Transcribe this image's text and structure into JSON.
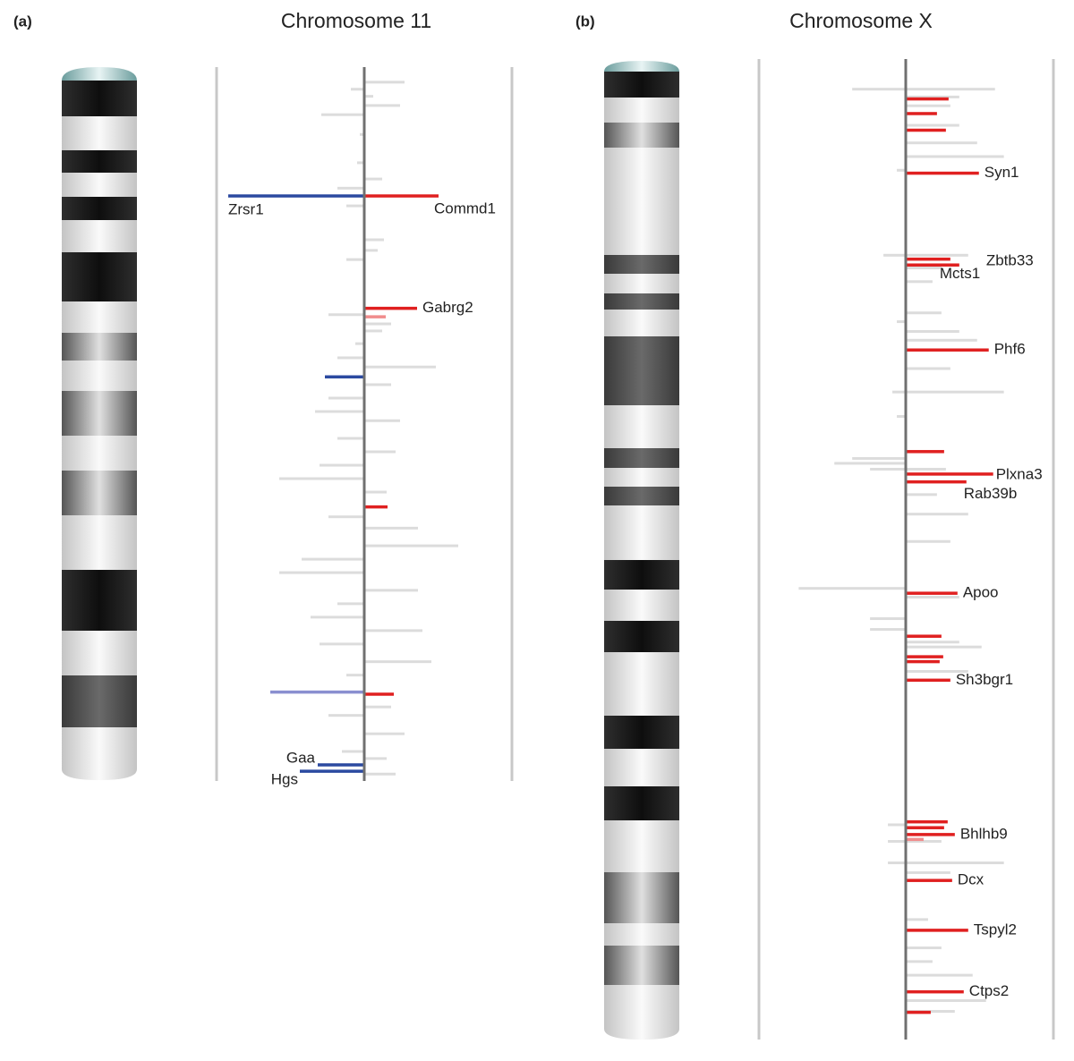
{
  "chart_data": [
    {
      "type": "bar",
      "panel_label": "(a)",
      "title": "Chromosome 11",
      "xlim": [
        0,
        100
      ],
      "ylim": [
        -165,
        165
      ],
      "series": [
        {
          "color": "#dcdcdc",
          "x": [
            1.5,
            2.5,
            3.5,
            4.8,
            6.1,
            8.9,
            12.9,
            15.2,
            16.5,
            19.0,
            23.8,
            25.3,
            26.6,
            34.4,
            35.7,
            36.7,
            38.5,
            40.5,
            41.8,
            44.3,
            46.2,
            48.1,
            49.4,
            51.9,
            53.8,
            55.7,
            57.6,
            59.5,
            63.0,
            64.6,
            67.1,
            69.0,
            70.9,
            73.4,
            75.3,
            77.2,
            79.1,
            81.0,
            83.5,
            85.4,
            89.9,
            91.1,
            93.7,
            96.2,
            97.2,
            99.4
          ],
          "values": [
            45,
            -15,
            10,
            40,
            -48,
            -5,
            -8,
            20,
            -30,
            -20,
            22,
            15,
            -20,
            -40,
            30,
            20,
            -10,
            -30,
            80,
            30,
            -40,
            -55,
            40,
            -30,
            35,
            -50,
            -95,
            25,
            -40,
            60,
            105,
            -70,
            -95,
            60,
            -30,
            -60,
            65,
            -50,
            75,
            -20,
            30,
            -40,
            45,
            -25,
            25,
            35
          ]
        },
        {
          "color": "#e02020",
          "x": [
            17.6,
            33.5,
            61.6,
            88.1
          ],
          "values": [
            83,
            59,
            26,
            33
          ],
          "labels": [
            "Commd1",
            "Gabrg2",
            null,
            null
          ]
        },
        {
          "color": "#f08c8c",
          "x": [
            34.7
          ],
          "values": [
            24
          ]
        },
        {
          "color": "#2b4aa0",
          "x": [
            17.6,
            43.2,
            98.1,
            99.0
          ],
          "values": [
            -152,
            -44,
            -52,
            -72
          ],
          "labels": [
            "Zrsr1",
            null,
            "Gaa",
            "Hgs"
          ]
        },
        {
          "color": "#8a8fd0",
          "x": [
            87.8
          ],
          "values": [
            -105
          ]
        }
      ]
    },
    {
      "type": "bar",
      "panel_label": "(b)",
      "title": "Chromosome X",
      "xlim": [
        0,
        100
      ],
      "ylim": [
        -165,
        165
      ],
      "series": [
        {
          "color": "#dcdcdc",
          "x": [
            2.9,
            2.9,
            3.7,
            4.6,
            6.6,
            8.4,
            9.8,
            11.2,
            19.9,
            19.9,
            21.2,
            22.6,
            25.8,
            26.7,
            27.7,
            28.6,
            31.5,
            33.9,
            33.9,
            36.4,
            40.7,
            41.2,
            41.8,
            41.8,
            44.4,
            46.4,
            49.2,
            54.0,
            54.9,
            57.1,
            58.2,
            59.5,
            60.0,
            62.5,
            78.2,
            79.9,
            79.9,
            82.1,
            82.1,
            83.1,
            87.9,
            90.8,
            92.2,
            93.6,
            96.2,
            97.3
          ],
          "values": [
            -60,
            100,
            60,
            50,
            60,
            80,
            110,
            -10,
            -25,
            70,
            40,
            30,
            40,
            -10,
            60,
            80,
            50,
            -15,
            110,
            -10,
            -60,
            -80,
            -40,
            45,
            35,
            70,
            50,
            -120,
            60,
            -40,
            -40,
            60,
            85,
            70,
            -20,
            -20,
            40,
            -20,
            110,
            50,
            25,
            40,
            30,
            75,
            90,
            55
          ]
        },
        {
          "color": "#e02020",
          "x": [
            3.9,
            5.4,
            7.1,
            11.5,
            20.3,
            20.9,
            29.6,
            40.0,
            42.3,
            43.1,
            54.5,
            58.9,
            61.0,
            61.5,
            63.4,
            77.9,
            78.5,
            79.2,
            83.9,
            89.0,
            95.3,
            97.4
          ],
          "values": [
            48,
            35,
            45,
            82,
            50,
            60,
            93,
            43,
            98,
            68,
            58,
            40,
            42,
            38,
            50,
            47,
            43,
            55,
            52,
            70,
            65,
            28
          ],
          "labels": [
            null,
            null,
            null,
            "Syn1",
            "Mcts1",
            "Zbtb33",
            "Phf6",
            null,
            "Plxna3",
            "Rab39b",
            "Apoo",
            null,
            null,
            null,
            "Sh3bgr1",
            null,
            null,
            "Bhlhb9",
            "Dcx",
            "Tspyl2",
            "Ctps2",
            null
          ]
        },
        {
          "color": "#f08c8c",
          "x": [
            79.7
          ],
          "values": [
            20
          ]
        }
      ]
    }
  ]
}
